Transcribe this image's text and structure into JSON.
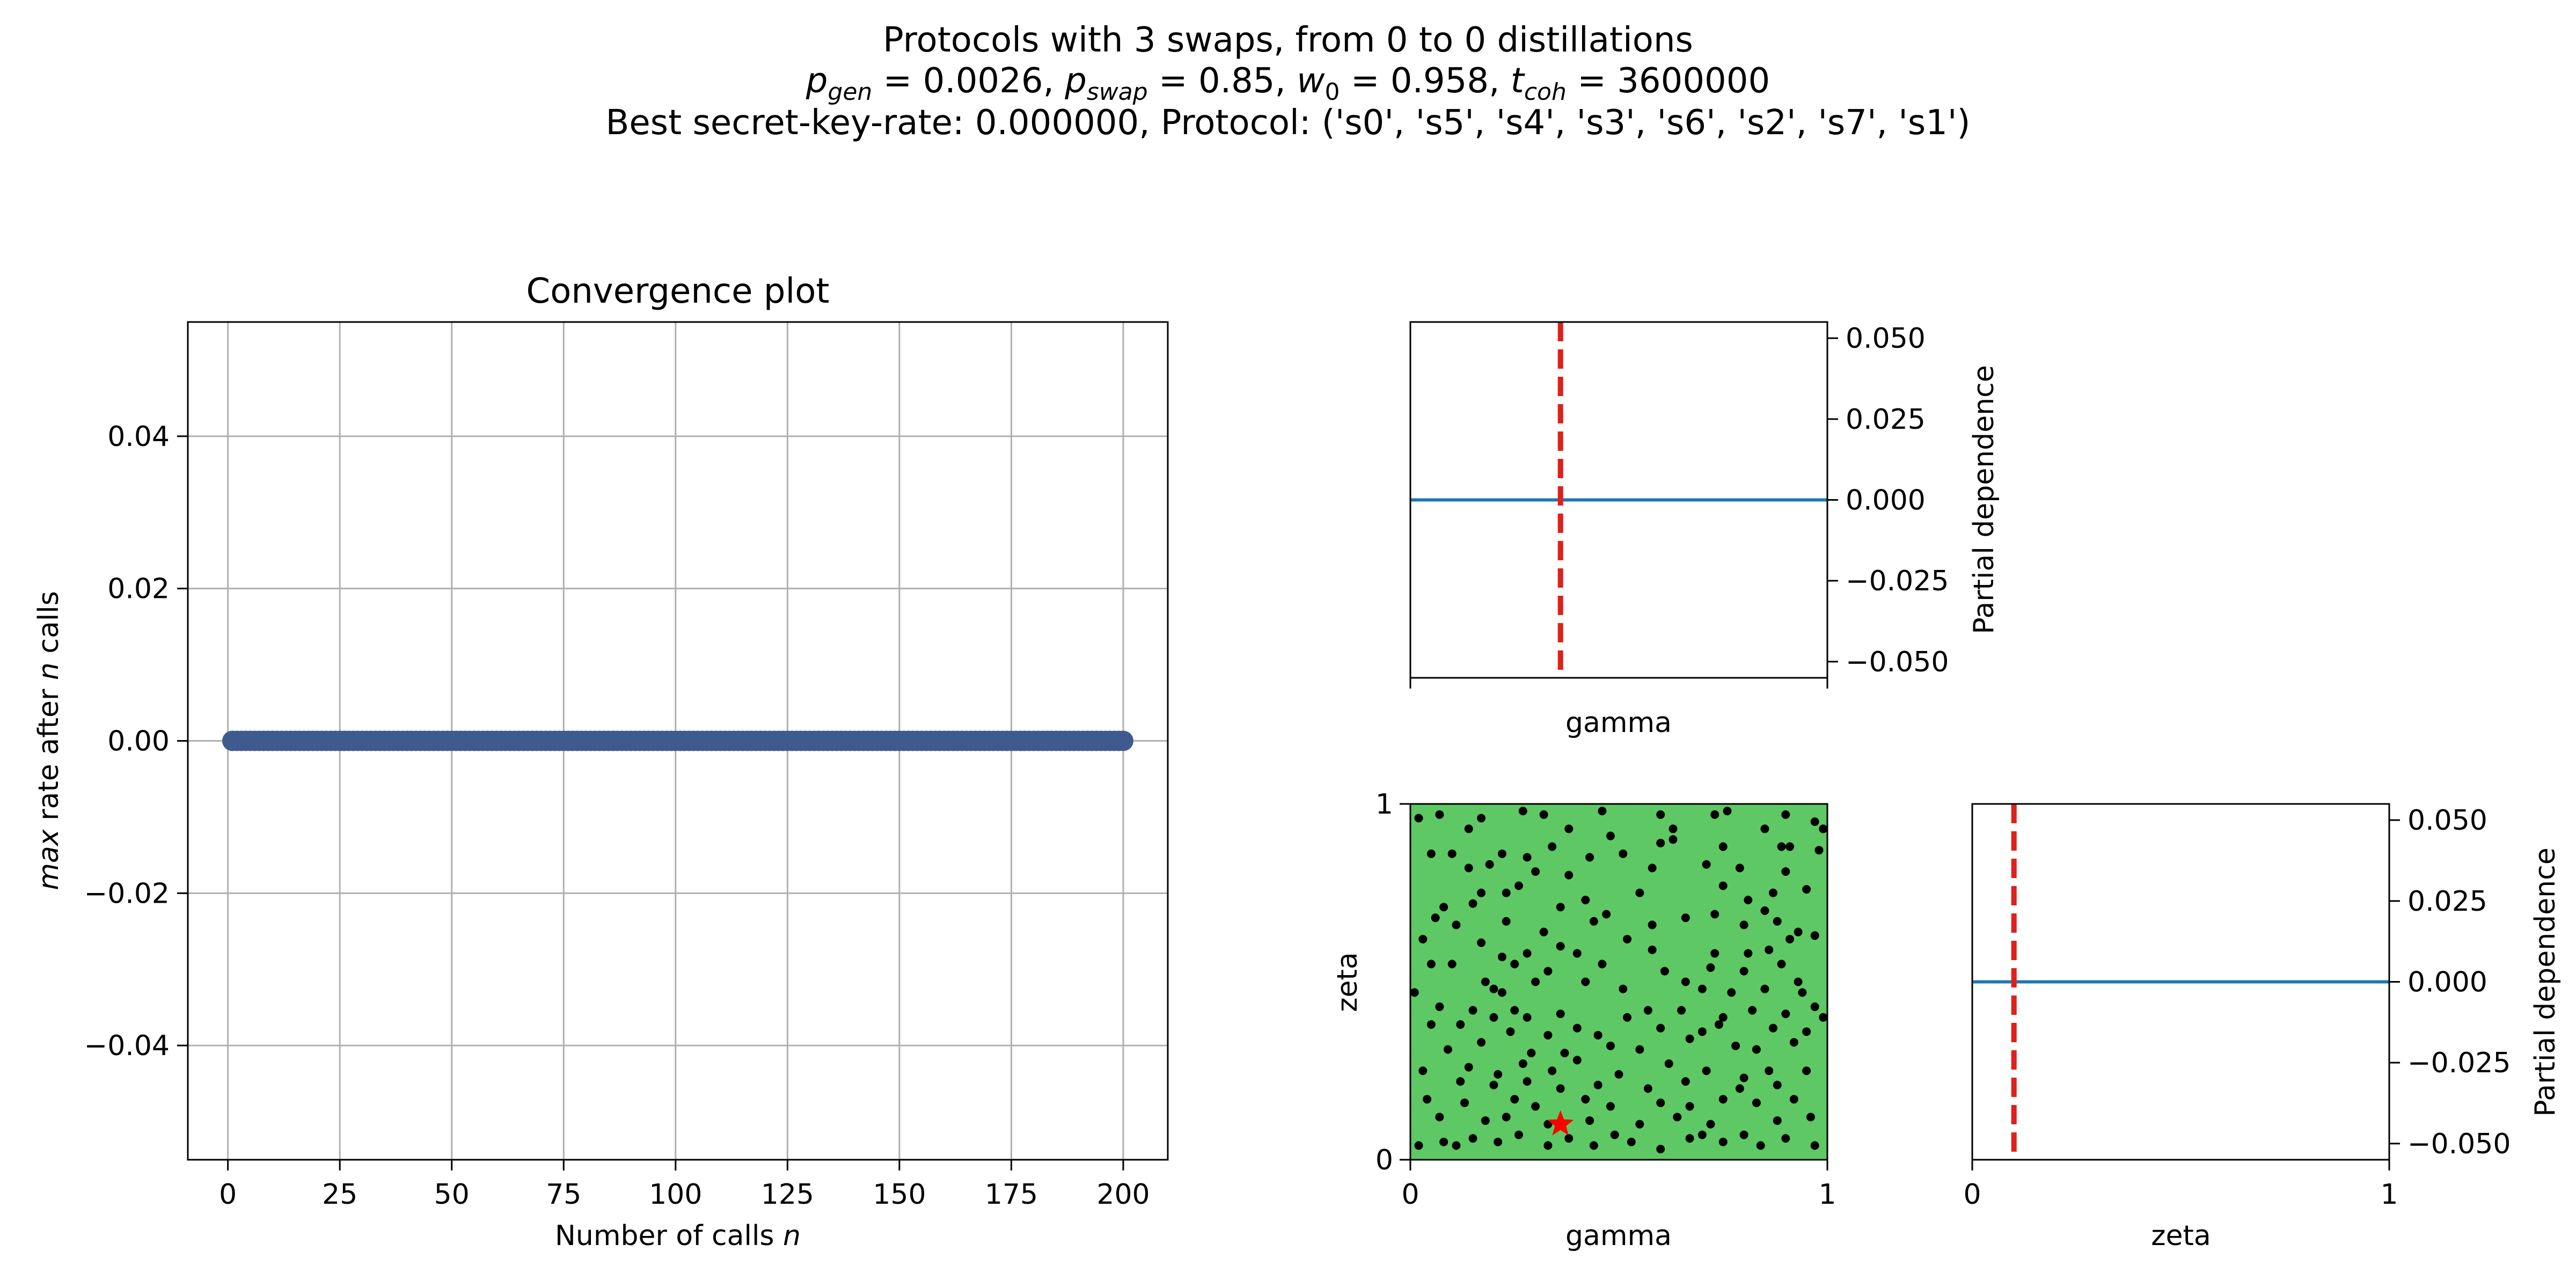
{
  "figure": {
    "title_line1": "Protocols with 3 swaps, from 0 to 0 distillations",
    "title_line2": "p_gen = 0.0026, p_swap = 0.85, w_0 = 0.958, t_coh = 3600000",
    "title_line3": "Best secret-key-rate: 0.000000, Protocol: ('s0', 's5', 's4', 's3', 's6', 's2', 's7', 's1')"
  },
  "colors": {
    "convergence_line": "#3f5a8e",
    "grid": "#b0b0b0",
    "partial_dependence_line": "#1f77b4",
    "best_point_line": "#e0201a",
    "contour_fill": "#5ec964",
    "sample_points": "#000000",
    "best_point_star": "#ff0000"
  },
  "chart_data": [
    {
      "id": "convergence",
      "type": "line",
      "title": "Convergence plot",
      "xlabel": "Number of calls n",
      "ylabel": "max rate after n calls",
      "x_range": [
        1,
        200
      ],
      "y_constant": 0.0,
      "xlim": [
        -8.95,
        209.95
      ],
      "ylim": [
        -0.055,
        0.055
      ],
      "xticks": [
        0,
        25,
        50,
        75,
        100,
        125,
        150,
        175,
        200
      ],
      "yticks": [
        -0.04,
        -0.02,
        0.0,
        0.02,
        0.04
      ],
      "ytick_labels": [
        "−0.04",
        "−0.02",
        "0.00",
        "0.02",
        "0.04"
      ],
      "grid": true
    },
    {
      "id": "pd_gamma",
      "type": "line",
      "xlabel": "gamma",
      "ylabel": "Partial dependence",
      "xlim": [
        0,
        1
      ],
      "ylim": [
        -0.055,
        0.055
      ],
      "yticks": [
        -0.05,
        -0.025,
        0.0,
        0.025,
        0.05
      ],
      "ytick_labels": [
        "−0.050",
        "−0.025",
        "0.000",
        "0.025",
        "0.050"
      ],
      "y_constant": 0.0,
      "best_x": 0.36
    },
    {
      "id": "pd_zeta",
      "type": "line",
      "xlabel": "zeta",
      "ylabel": "Partial dependence",
      "xlim": [
        0,
        1
      ],
      "ylim": [
        -0.055,
        0.055
      ],
      "xticks": [
        0,
        1
      ],
      "yticks": [
        -0.05,
        -0.025,
        0.0,
        0.025,
        0.05
      ],
      "ytick_labels": [
        "−0.050",
        "−0.025",
        "0.000",
        "0.025",
        "0.050"
      ],
      "y_constant": 0.0,
      "best_x": 0.1
    },
    {
      "id": "samples_gamma_zeta",
      "type": "scatter",
      "xlabel": "gamma",
      "ylabel": "zeta",
      "xlim": [
        0,
        1
      ],
      "ylim": [
        0,
        1
      ],
      "xticks": [
        0,
        1
      ],
      "yticks": [
        0,
        1
      ],
      "best_point": [
        0.36,
        0.1
      ],
      "points": [
        [
          0.02,
          0.96
        ],
        [
          0.07,
          0.97
        ],
        [
          0.17,
          0.96
        ],
        [
          0.27,
          0.98
        ],
        [
          0.32,
          0.97
        ],
        [
          0.46,
          0.98
        ],
        [
          0.6,
          0.97
        ],
        [
          0.73,
          0.97
        ],
        [
          0.76,
          0.98
        ],
        [
          0.9,
          0.97
        ],
        [
          0.97,
          0.95
        ],
        [
          0.99,
          0.93
        ],
        [
          0.14,
          0.93
        ],
        [
          0.38,
          0.93
        ],
        [
          0.48,
          0.91
        ],
        [
          0.63,
          0.93
        ],
        [
          0.85,
          0.93
        ],
        [
          0.34,
          0.88
        ],
        [
          0.43,
          0.85
        ],
        [
          0.51,
          0.86
        ],
        [
          0.6,
          0.89
        ],
        [
          0.63,
          0.9
        ],
        [
          0.75,
          0.88
        ],
        [
          0.89,
          0.88
        ],
        [
          0.91,
          0.88
        ],
        [
          0.98,
          0.87
        ],
        [
          0.05,
          0.86
        ],
        [
          0.1,
          0.86
        ],
        [
          0.14,
          0.82
        ],
        [
          0.19,
          0.83
        ],
        [
          0.22,
          0.86
        ],
        [
          0.28,
          0.85
        ],
        [
          0.3,
          0.81
        ],
        [
          0.38,
          0.8
        ],
        [
          0.58,
          0.82
        ],
        [
          0.71,
          0.83
        ],
        [
          0.79,
          0.82
        ],
        [
          0.9,
          0.81
        ],
        [
          0.17,
          0.75
        ],
        [
          0.23,
          0.75
        ],
        [
          0.26,
          0.77
        ],
        [
          0.55,
          0.75
        ],
        [
          0.75,
          0.77
        ],
        [
          0.87,
          0.75
        ],
        [
          0.95,
          0.76
        ],
        [
          0.08,
          0.71
        ],
        [
          0.15,
          0.72
        ],
        [
          0.36,
          0.71
        ],
        [
          0.42,
          0.73
        ],
        [
          0.81,
          0.73
        ],
        [
          0.85,
          0.7
        ],
        [
          0.06,
          0.68
        ],
        [
          0.11,
          0.66
        ],
        [
          0.23,
          0.67
        ],
        [
          0.32,
          0.64
        ],
        [
          0.44,
          0.67
        ],
        [
          0.47,
          0.69
        ],
        [
          0.58,
          0.66
        ],
        [
          0.66,
          0.68
        ],
        [
          0.73,
          0.69
        ],
        [
          0.8,
          0.66
        ],
        [
          0.88,
          0.67
        ],
        [
          0.91,
          0.62
        ],
        [
          0.93,
          0.64
        ],
        [
          0.97,
          0.63
        ],
        [
          0.03,
          0.62
        ],
        [
          0.17,
          0.61
        ],
        [
          0.22,
          0.57
        ],
        [
          0.28,
          0.58
        ],
        [
          0.36,
          0.6
        ],
        [
          0.4,
          0.58
        ],
        [
          0.52,
          0.62
        ],
        [
          0.58,
          0.59
        ],
        [
          0.73,
          0.58
        ],
        [
          0.81,
          0.58
        ],
        [
          0.86,
          0.59
        ],
        [
          0.89,
          0.55
        ],
        [
          0.05,
          0.55
        ],
        [
          0.1,
          0.55
        ],
        [
          0.18,
          0.5
        ],
        [
          0.25,
          0.55
        ],
        [
          0.33,
          0.53
        ],
        [
          0.46,
          0.55
        ],
        [
          0.61,
          0.53
        ],
        [
          0.72,
          0.54
        ],
        [
          0.8,
          0.53
        ],
        [
          0.93,
          0.5
        ],
        [
          0.01,
          0.47
        ],
        [
          0.2,
          0.48
        ],
        [
          0.22,
          0.47
        ],
        [
          0.3,
          0.5
        ],
        [
          0.42,
          0.5
        ],
        [
          0.51,
          0.48
        ],
        [
          0.66,
          0.5
        ],
        [
          0.7,
          0.48
        ],
        [
          0.77,
          0.47
        ],
        [
          0.85,
          0.48
        ],
        [
          0.94,
          0.47
        ],
        [
          0.07,
          0.43
        ],
        [
          0.15,
          0.42
        ],
        [
          0.25,
          0.42
        ],
        [
          0.28,
          0.4
        ],
        [
          0.36,
          0.41
        ],
        [
          0.52,
          0.4
        ],
        [
          0.57,
          0.42
        ],
        [
          0.65,
          0.42
        ],
        [
          0.75,
          0.4
        ],
        [
          0.82,
          0.42
        ],
        [
          0.9,
          0.41
        ],
        [
          0.97,
          0.43
        ],
        [
          0.99,
          0.4
        ],
        [
          0.05,
          0.38
        ],
        [
          0.12,
          0.38
        ],
        [
          0.2,
          0.4
        ],
        [
          0.24,
          0.36
        ],
        [
          0.33,
          0.35
        ],
        [
          0.4,
          0.37
        ],
        [
          0.45,
          0.35
        ],
        [
          0.6,
          0.37
        ],
        [
          0.7,
          0.36
        ],
        [
          0.74,
          0.38
        ],
        [
          0.87,
          0.37
        ],
        [
          0.95,
          0.36
        ],
        [
          0.09,
          0.31
        ],
        [
          0.17,
          0.33
        ],
        [
          0.29,
          0.3
        ],
        [
          0.37,
          0.3
        ],
        [
          0.48,
          0.32
        ],
        [
          0.55,
          0.31
        ],
        [
          0.67,
          0.34
        ],
        [
          0.78,
          0.32
        ],
        [
          0.83,
          0.31
        ],
        [
          0.92,
          0.33
        ],
        [
          0.03,
          0.25
        ],
        [
          0.14,
          0.26
        ],
        [
          0.21,
          0.24
        ],
        [
          0.27,
          0.27
        ],
        [
          0.34,
          0.25
        ],
        [
          0.4,
          0.28
        ],
        [
          0.5,
          0.24
        ],
        [
          0.62,
          0.27
        ],
        [
          0.71,
          0.25
        ],
        [
          0.8,
          0.23
        ],
        [
          0.86,
          0.25
        ],
        [
          0.95,
          0.25
        ],
        [
          0.12,
          0.22
        ],
        [
          0.2,
          0.21
        ],
        [
          0.28,
          0.22
        ],
        [
          0.36,
          0.2
        ],
        [
          0.45,
          0.21
        ],
        [
          0.57,
          0.2
        ],
        [
          0.66,
          0.22
        ],
        [
          0.79,
          0.2
        ],
        [
          0.88,
          0.21
        ],
        [
          0.04,
          0.17
        ],
        [
          0.13,
          0.16
        ],
        [
          0.25,
          0.17
        ],
        [
          0.3,
          0.15
        ],
        [
          0.42,
          0.17
        ],
        [
          0.48,
          0.15
        ],
        [
          0.6,
          0.16
        ],
        [
          0.67,
          0.15
        ],
        [
          0.75,
          0.17
        ],
        [
          0.83,
          0.16
        ],
        [
          0.92,
          0.17
        ],
        [
          0.07,
          0.12
        ],
        [
          0.18,
          0.11
        ],
        [
          0.23,
          0.12
        ],
        [
          0.33,
          0.1
        ],
        [
          0.43,
          0.11
        ],
        [
          0.55,
          0.1
        ],
        [
          0.64,
          0.12
        ],
        [
          0.72,
          0.1
        ],
        [
          0.88,
          0.11
        ],
        [
          0.96,
          0.12
        ],
        [
          0.02,
          0.04
        ],
        [
          0.08,
          0.05
        ],
        [
          0.11,
          0.04
        ],
        [
          0.15,
          0.06
        ],
        [
          0.21,
          0.05
        ],
        [
          0.26,
          0.07
        ],
        [
          0.33,
          0.04
        ],
        [
          0.38,
          0.06
        ],
        [
          0.44,
          0.04
        ],
        [
          0.49,
          0.07
        ],
        [
          0.53,
          0.05
        ],
        [
          0.6,
          0.03
        ],
        [
          0.67,
          0.06
        ],
        [
          0.7,
          0.07
        ],
        [
          0.75,
          0.05
        ],
        [
          0.8,
          0.07
        ],
        [
          0.84,
          0.04
        ],
        [
          0.9,
          0.06
        ],
        [
          0.97,
          0.04
        ]
      ]
    }
  ]
}
